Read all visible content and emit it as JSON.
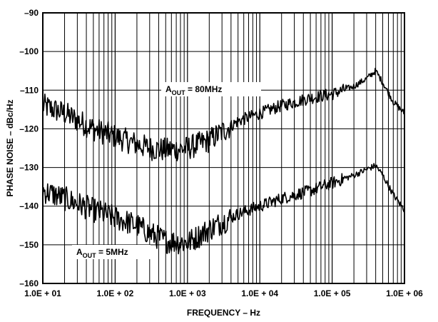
{
  "chart_data": {
    "type": "line",
    "xlabel": "FREQUENCY – Hz",
    "ylabel": "PHASE NOISE – dBc/Hz",
    "x_scale": "log",
    "xlim": [
      10,
      1000000
    ],
    "ylim": [
      -160,
      -90
    ],
    "x_ticks": [
      10,
      100,
      1000,
      10000,
      100000,
      1000000
    ],
    "x_tick_labels": [
      "1.0E + 01",
      "1.0E + 02",
      "1.0E + 03",
      "1.0E + 04",
      "1.0E + 05",
      "1.0E + 06"
    ],
    "y_ticks": [
      -160,
      -150,
      -140,
      -130,
      -120,
      -110,
      -100,
      -90
    ],
    "y_tick_labels": [
      "–160",
      "–150",
      "–140",
      "–130",
      "–120",
      "–110",
      "–100",
      "–90"
    ],
    "grid": true,
    "series": [
      {
        "label_prefix": "A",
        "label_sub": "OUT",
        "label_suffix": " = 80MHz",
        "x": [
          10,
          20,
          50,
          100,
          200,
          300,
          500,
          1000,
          2000,
          5000,
          10000,
          20000,
          50000,
          100000,
          200000,
          300000,
          400000,
          500000,
          700000,
          1000000
        ],
        "y": [
          -114,
          -116,
          -120,
          -122,
          -124,
          -125,
          -125.5,
          -125,
          -123,
          -118,
          -116,
          -114,
          -112,
          -111,
          -109,
          -107,
          -105,
          -108,
          -113,
          -116
        ]
      },
      {
        "label_prefix": "A",
        "label_sub": "OUT",
        "label_suffix": " = 5MHz",
        "x": [
          10,
          20,
          50,
          100,
          200,
          300,
          500,
          1000,
          2000,
          5000,
          10000,
          20000,
          50000,
          100000,
          200000,
          300000,
          400000,
          500000,
          700000,
          1000000
        ],
        "y": [
          -136,
          -138,
          -141,
          -143,
          -145,
          -147,
          -149,
          -149.5,
          -146,
          -142,
          -140,
          -138,
          -136,
          -134,
          -132,
          -130.5,
          -129.5,
          -132,
          -137,
          -141
        ]
      }
    ]
  }
}
